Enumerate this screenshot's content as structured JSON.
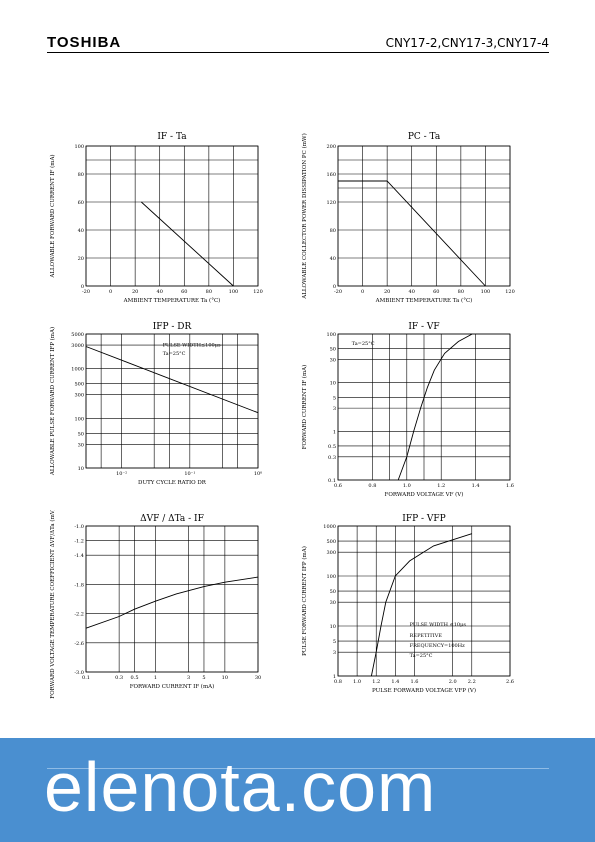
{
  "header": {
    "logo": "TOSHIBA",
    "part_numbers": "CNY17-2,CNY17-3,CNY17-4"
  },
  "watermark": {
    "text": "elenota.com",
    "color": "#4a8fd0"
  },
  "chart_data": [
    {
      "id": "c1",
      "type": "line",
      "title": "IF - Ta",
      "ylabel": "ALLOWABLE FORWARD CURRENT IF (mA)",
      "xlabel": "AMBIENT TEMPERATURE Ta (°C)",
      "xscale": "linear",
      "yscale": "linear",
      "xlim": [
        -20,
        120
      ],
      "ylim": [
        0,
        100
      ],
      "xticks": [
        -20,
        0,
        20,
        40,
        60,
        80,
        100,
        120
      ],
      "yticks": [
        0,
        20,
        40,
        60,
        80,
        100
      ],
      "xtick_labels": [
        "-20",
        "0",
        "20",
        "40",
        "60",
        "80",
        "100",
        "120"
      ],
      "ytick_labels": [
        "0",
        "20",
        "40",
        "60",
        "80",
        "100"
      ],
      "xgrid": [
        -20,
        0,
        20,
        40,
        60,
        80,
        100,
        120
      ],
      "ygrid": [
        0,
        20,
        40,
        60,
        80,
        90,
        100
      ],
      "series": [
        {
          "x": [
            25,
            100
          ],
          "y": [
            60,
            0
          ]
        }
      ],
      "annotations": []
    },
    {
      "id": "c2",
      "type": "line",
      "title": "PC - Ta",
      "ylabel": "ALLOWABLE COLLECTOR POWER DISSIPATION PC (mW)",
      "xlabel": "AMBIENT TEMPERATURE Ta (°C)",
      "xscale": "linear",
      "yscale": "linear",
      "xlim": [
        -20,
        120
      ],
      "ylim": [
        0,
        200
      ],
      "xticks": [
        -20,
        0,
        20,
        40,
        60,
        80,
        100,
        120
      ],
      "yticks": [
        0,
        40,
        80,
        120,
        160,
        200
      ],
      "xtick_labels": [
        "-20",
        "0",
        "20",
        "40",
        "60",
        "80",
        "100",
        "120"
      ],
      "ytick_labels": [
        "0",
        "40",
        "80",
        "120",
        "160",
        "200"
      ],
      "xgrid": [
        -20,
        0,
        20,
        40,
        60,
        80,
        100,
        120
      ],
      "ygrid": [
        0,
        40,
        80,
        120,
        140,
        160,
        180,
        200
      ],
      "series": [
        {
          "x": [
            -20,
            20,
            100
          ],
          "y": [
            150,
            150,
            0
          ]
        }
      ],
      "annotations": []
    },
    {
      "id": "c3",
      "type": "line",
      "title": "IFP - DR",
      "ylabel": "ALLOWABLE PULSE FORWARD CURRENT IFP (mA)",
      "xlabel": "DUTY CYCLE RATIO DR",
      "xscale": "log",
      "yscale": "log",
      "xlim": [
        0.003,
        1
      ],
      "ylim": [
        10,
        5000
      ],
      "xticks": [
        0.01,
        0.1,
        1
      ],
      "yticks": [
        10,
        30,
        50,
        100,
        300,
        500,
        1000,
        3000,
        5000
      ],
      "xtick_labels": [
        "10⁻²",
        "10⁻¹",
        "10⁰"
      ],
      "ytick_labels": [
        "10",
        "30",
        "50",
        "100",
        "300",
        "500",
        "1000",
        "3000",
        "5000"
      ],
      "xgrid": [
        0.003,
        0.005,
        0.01,
        0.03,
        0.05,
        0.1,
        0.3,
        0.5,
        1
      ],
      "ygrid": [
        10,
        30,
        50,
        100,
        300,
        500,
        1000,
        3000,
        5000
      ],
      "series": [
        {
          "x": [
            0.003,
            1
          ],
          "y": [
            2800,
            130
          ]
        }
      ],
      "annotations": [
        {
          "text": "PULSE WIDTH≤100μs",
          "x": 0.04,
          "y": 2800
        },
        {
          "text": "Ta=25°C",
          "x": 0.04,
          "y": 1900
        }
      ]
    },
    {
      "id": "c4",
      "type": "line",
      "title": "IF - VF",
      "ylabel": "FORWARD CURRENT IF (mA)",
      "xlabel": "FORWARD VOLTAGE VF (V)",
      "xscale": "linear",
      "yscale": "log",
      "xlim": [
        0.6,
        1.6
      ],
      "ylim": [
        0.1,
        100
      ],
      "xticks": [
        0.6,
        0.8,
        1.0,
        1.2,
        1.4,
        1.6
      ],
      "yticks": [
        0.1,
        0.3,
        0.5,
        1,
        3,
        5,
        10,
        30,
        50,
        100
      ],
      "xtick_labels": [
        "0.6",
        "0.8",
        "1.0",
        "1.2",
        "1.4",
        "1.6"
      ],
      "ytick_labels": [
        "0.1",
        "0.3",
        "0.5",
        "1",
        "3",
        "5",
        "10",
        "30",
        "50",
        "100"
      ],
      "xgrid": [
        0.6,
        0.8,
        0.9,
        1.0,
        1.1,
        1.2,
        1.4,
        1.6
      ],
      "ygrid": [
        0.1,
        0.3,
        0.5,
        1,
        3,
        5,
        10,
        30,
        50,
        100
      ],
      "series": [
        {
          "x": [
            0.95,
            1.0,
            1.04,
            1.08,
            1.12,
            1.16,
            1.22,
            1.3,
            1.38
          ],
          "y": [
            0.1,
            0.3,
            1,
            3,
            8,
            18,
            40,
            70,
            100
          ]
        }
      ],
      "annotations": [
        {
          "text": "Ta=25°C",
          "x": 0.68,
          "y": 60
        }
      ]
    },
    {
      "id": "c5",
      "type": "line",
      "title": "ΔVF / ΔTa - IF",
      "ylabel": "FORWARD VOLTAGE TEMPERATURE COEFFICIENT ΔVF/ΔTa (mV/°C)",
      "xlabel": "FORWARD CURRENT IF (mA)",
      "xscale": "log",
      "yscale": "linear",
      "xlim": [
        0.1,
        30
      ],
      "ylim": [
        -3.0,
        -1.0
      ],
      "xticks": [
        0.1,
        0.3,
        0.5,
        1,
        3,
        5,
        10,
        30
      ],
      "yticks": [
        -3.0,
        -2.6,
        -2.2,
        -1.8,
        -1.4,
        -1.2,
        -1.0
      ],
      "xtick_labels": [
        "0.1",
        "0.3",
        "0.5",
        "1",
        "3",
        "5",
        "10",
        "30"
      ],
      "ytick_labels": [
        "-3.0",
        "-2.6",
        "-2.2",
        "-1.8",
        "-1.4",
        "-1.2",
        "-1.0"
      ],
      "xgrid": [
        0.1,
        0.3,
        0.5,
        1,
        3,
        5,
        10,
        30
      ],
      "ygrid": [
        -3.0,
        -2.6,
        -2.2,
        -1.8,
        -1.4,
        -1.2,
        -1.0
      ],
      "series": [
        {
          "x": [
            0.1,
            0.3,
            0.5,
            1,
            2,
            5,
            10,
            30
          ],
          "y": [
            -2.4,
            -2.24,
            -2.14,
            -2.03,
            -1.93,
            -1.83,
            -1.77,
            -1.7
          ]
        }
      ],
      "annotations": []
    },
    {
      "id": "c6",
      "type": "line",
      "title": "IFP - VFP",
      "ylabel": "PULSE FORWARD CURRENT IFP (mA)",
      "xlabel": "PULSE FORWARD VOLTAGE VFP (V)",
      "xscale": "linear",
      "yscale": "log",
      "xlim": [
        0.8,
        2.6
      ],
      "ylim": [
        1,
        1000
      ],
      "xticks": [
        0.8,
        1.0,
        1.2,
        1.4,
        1.6,
        2.0,
        2.2,
        2.6
      ],
      "yticks": [
        1,
        3,
        5,
        10,
        30,
        50,
        100,
        300,
        500,
        1000
      ],
      "xtick_labels": [
        "0.8",
        "1.0",
        "1.2",
        "1.4",
        "1.6",
        "2.0",
        "2.2",
        "2.6"
      ],
      "ytick_labels": [
        "1",
        "3",
        "5",
        "10",
        "30",
        "50",
        "100",
        "300",
        "500",
        "1000"
      ],
      "xgrid": [
        0.8,
        1.0,
        1.2,
        1.4,
        1.6,
        2.0,
        2.2,
        2.6
      ],
      "ygrid": [
        1,
        3,
        5,
        10,
        30,
        50,
        100,
        300,
        500,
        1000
      ],
      "series": [
        {
          "x": [
            1.15,
            1.2,
            1.25,
            1.3,
            1.4,
            1.55,
            1.8,
            2.2
          ],
          "y": [
            1,
            3,
            10,
            30,
            100,
            200,
            400,
            700
          ]
        }
      ],
      "annotations": [
        {
          "text": "PULSE WIDTH ≤10μs",
          "x": 1.55,
          "y": 10
        },
        {
          "text": "REPETITIVE",
          "x": 1.55,
          "y": 6
        },
        {
          "text": "FREQUENCY=100Hz",
          "x": 1.55,
          "y": 3.8
        },
        {
          "text": "Ta=25°C",
          "x": 1.55,
          "y": 2.4
        }
      ]
    }
  ]
}
